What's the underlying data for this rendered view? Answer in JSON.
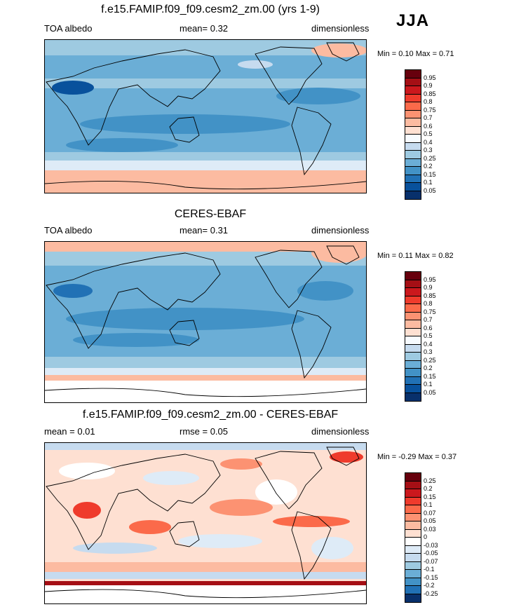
{
  "season": "JJA",
  "panels": [
    {
      "title": "f.e15.FAMIP.f09_f09.cesm2_zm.00 (yrs 1-9)",
      "left": "TOA albedo",
      "center": "mean=   0.32",
      "right": "dimensionless",
      "minmax": "Min =   0.10 Max =   0.71",
      "labels": [
        "0.95",
        "0.9",
        "0.85",
        "0.8",
        "0.75",
        "0.7",
        "0.6",
        "0.5",
        "0.4",
        "0.3",
        "0.25",
        "0.2",
        "0.15",
        "0.1",
        "0.05"
      ]
    },
    {
      "title": "CERES-EBAF",
      "left": "TOA albedo",
      "center": "mean=   0.31",
      "right": "dimensionless",
      "minmax": "Min =   0.11 Max =   0.82",
      "labels": [
        "0.95",
        "0.9",
        "0.85",
        "0.8",
        "0.75",
        "0.7",
        "0.6",
        "0.5",
        "0.4",
        "0.3",
        "0.25",
        "0.2",
        "0.15",
        "0.1",
        "0.05"
      ]
    },
    {
      "title": "f.e15.FAMIP.f09_f09.cesm2_zm.00 - CERES-EBAF",
      "left": "mean =   0.01",
      "center": "rmse =   0.05",
      "right": "dimensionless",
      "minmax": "Min =  -0.29 Max =   0.37",
      "labels": [
        "0.25",
        "0.2",
        "0.15",
        "0.1",
        "0.07",
        "0.05",
        "0.03",
        "0",
        "-0.03",
        "-0.05",
        "-0.07",
        "-0.1",
        "-0.15",
        "-0.2",
        "-0.25"
      ]
    }
  ],
  "colors": {
    "seq": [
      "#67000d",
      "#a50f15",
      "#cb181d",
      "#ef3b2c",
      "#fb6a4a",
      "#fc9272",
      "#fcbba1",
      "#fee0d2",
      "#f7fbff",
      "#c6dbef",
      "#9ecae1",
      "#6baed6",
      "#4292c6",
      "#2171b5",
      "#08519c",
      "#08306b"
    ],
    "div": [
      "#67000d",
      "#a50f15",
      "#cb181d",
      "#ef3b2c",
      "#fb6a4a",
      "#fc9272",
      "#fcbba1",
      "#fee0d2",
      "#ffffff",
      "#deebf7",
      "#c6dbef",
      "#9ecae1",
      "#6baed6",
      "#4292c6",
      "#2171b5",
      "#08306b"
    ]
  }
}
